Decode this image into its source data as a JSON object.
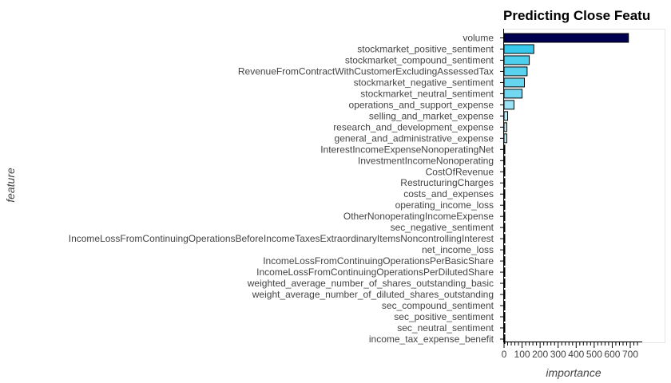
{
  "chart_data": {
    "type": "bar",
    "orientation": "horizontal",
    "title": "Predicting Close Featu",
    "xlabel": "importance",
    "ylabel": "feature",
    "xlim": [
      0,
      750
    ],
    "x_ticks": [
      "0",
      "100",
      "200",
      "300",
      "400",
      "500",
      "600",
      "700"
    ],
    "grid": false,
    "categories": [
      "volume",
      "stockmarket_positive_sentiment",
      "stockmarket_compound_sentiment",
      "RevenueFromContractWithCustomerExcludingAssessedTax",
      "stockmarket_negative_sentiment",
      "stockmarket_neutral_sentiment",
      "operations_and_support_expense",
      "selling_and_market_expense",
      "research_and_development_expense",
      "general_and_administrative_expense",
      "InterestIncomeExpenseNonoperatingNet",
      "InvestmentIncomeNonoperating",
      "CostOfRevenue",
      "RestructuringCharges",
      "costs_and_expenses",
      "operating_income_loss",
      "OtherNonoperatingIncomeExpense",
      "sec_negative_sentiment",
      "IncomeLossFromContinuingOperationsBeforeIncomeTaxesExtraordinaryItemsNoncontrollingInterest",
      "net_income_loss",
      "IncomeLossFromContinuingOperationsPerBasicShare",
      "IncomeLossFromContinuingOperationsPerDilutedShare",
      "weighted_average_number_of_shares_outstanding_basic",
      "weight_average_number_of_diluted_shares_outstanding",
      "sec_compound_sentiment",
      "sec_positive_sentiment",
      "sec_neutral_sentiment",
      "income_tax_expense_benefit"
    ],
    "values": [
      690,
      165,
      140,
      128,
      113,
      100,
      55,
      20,
      15,
      15,
      4,
      3,
      2,
      1.5,
      1,
      1,
      1,
      1,
      0.8,
      0.5,
      0.5,
      0.5,
      0.5,
      0.5,
      0.3,
      0.3,
      0.3,
      0.2
    ],
    "colors": {
      "max_bar": "#000050",
      "high_bar": "#32c8ec",
      "low_bar": "#cdf0f8",
      "bar_stroke": "#000000",
      "axis": "#000000"
    }
  }
}
